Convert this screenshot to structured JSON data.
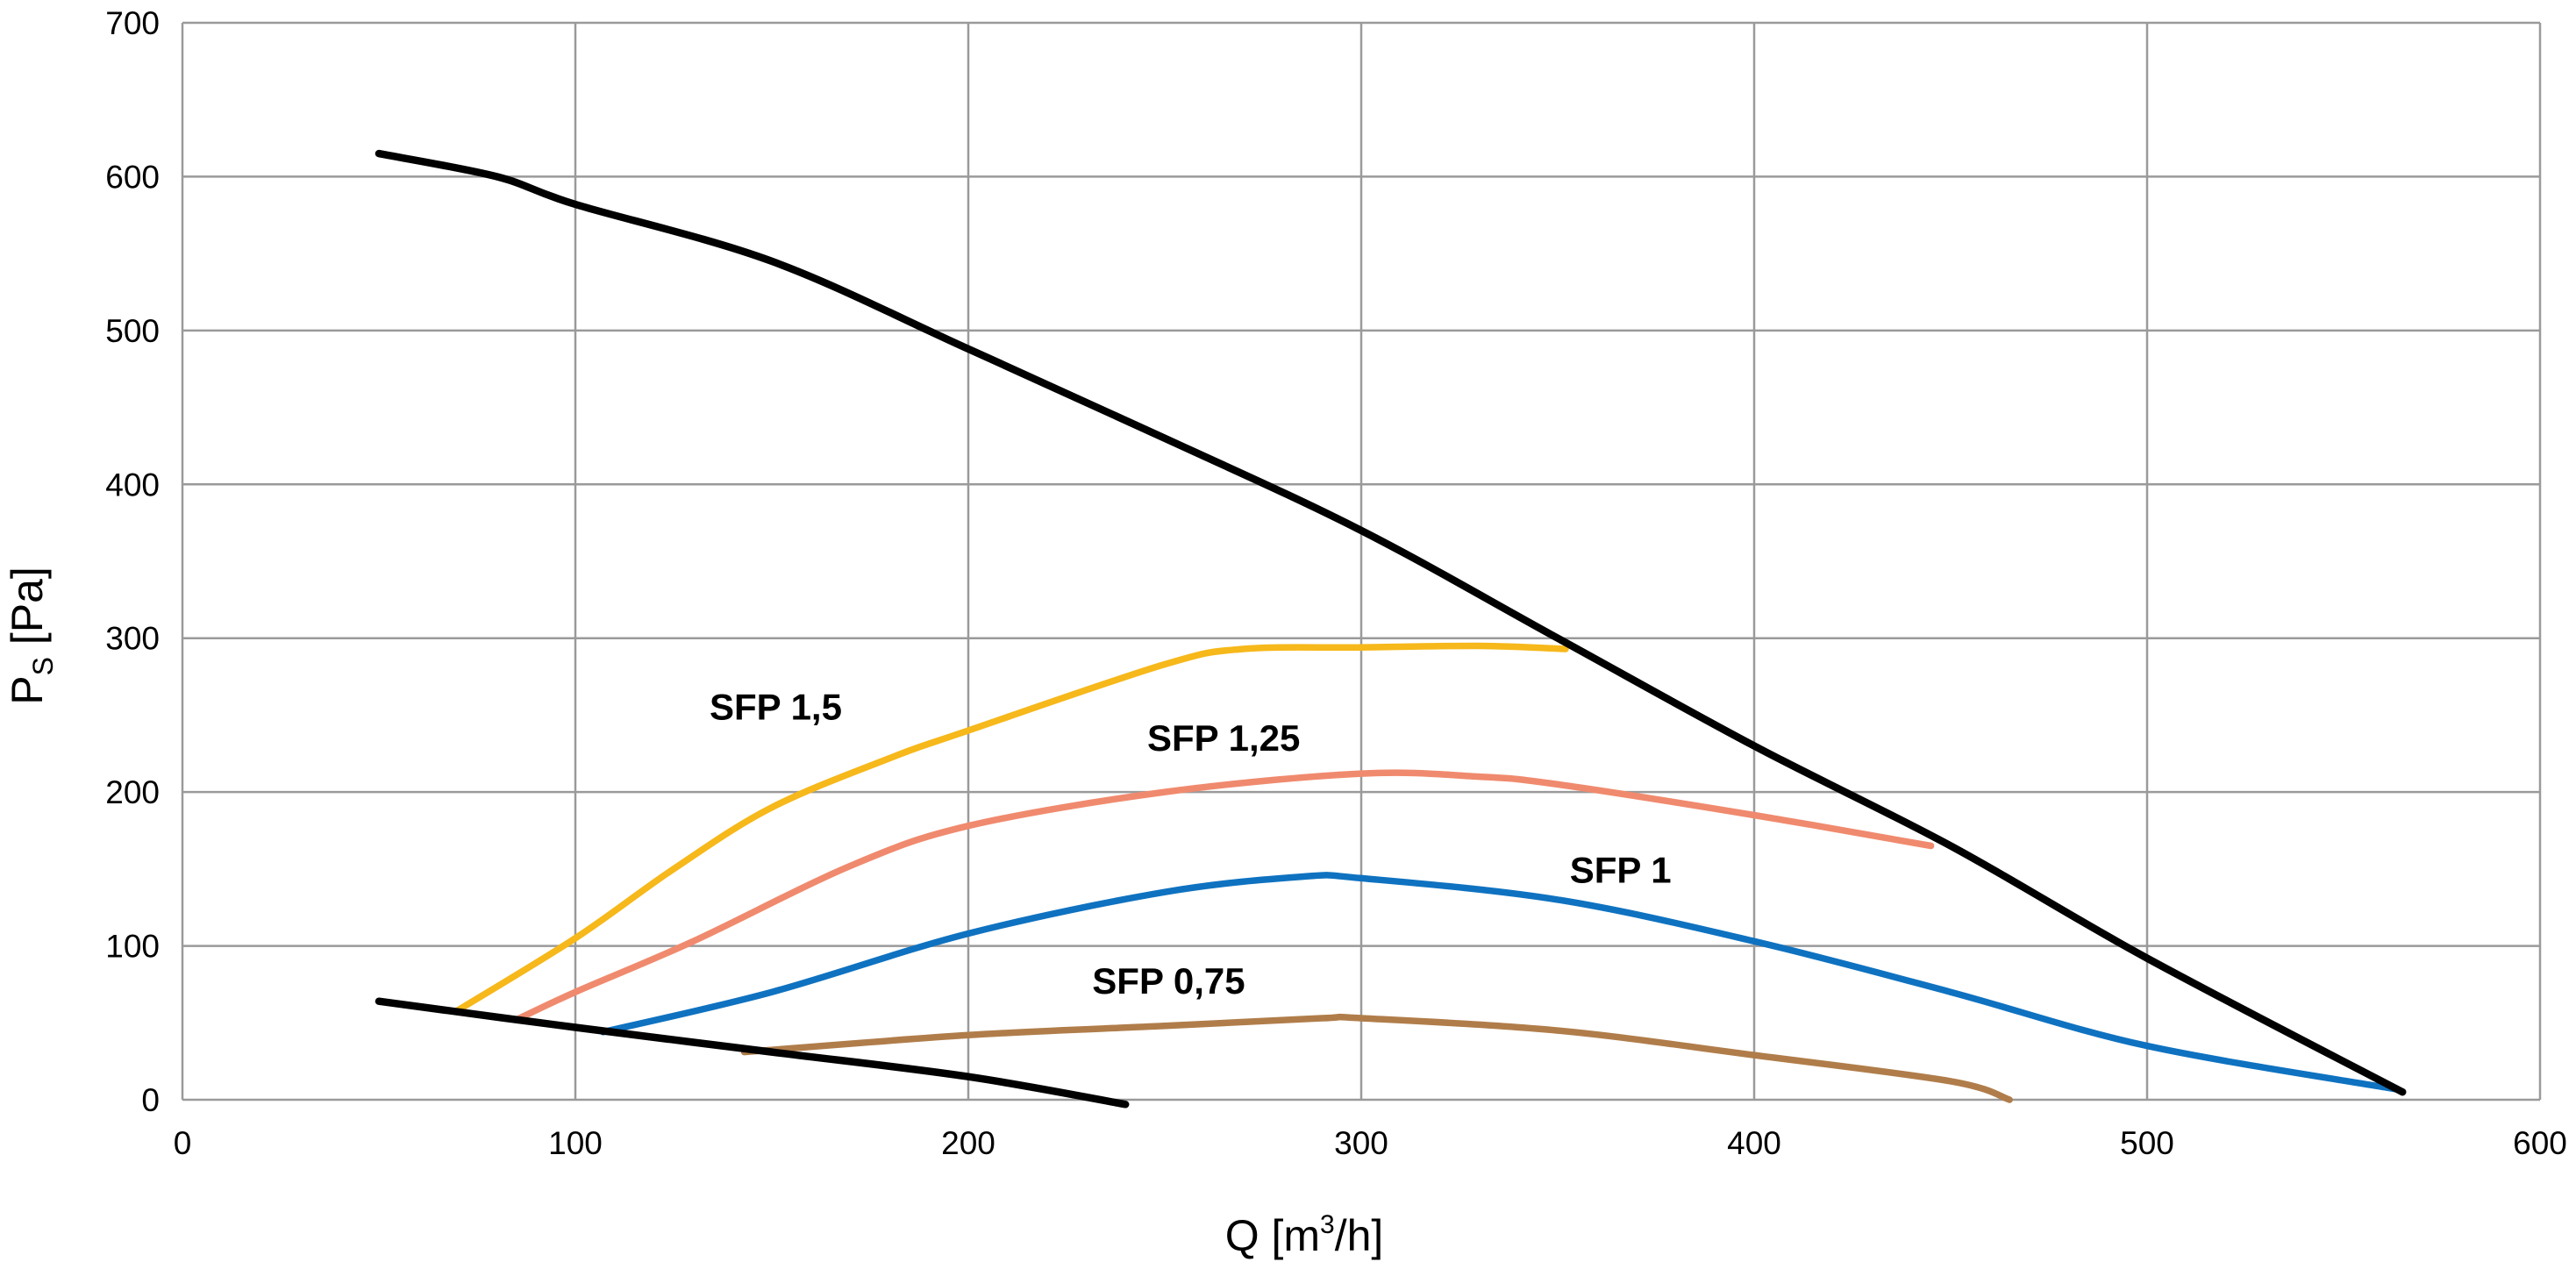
{
  "chart_data": {
    "type": "line",
    "xlabel": {
      "prefix": "Q [m",
      "sup": "3",
      "suffix": "/h]"
    },
    "ylabel": {
      "prefix": "P",
      "sub": "S",
      "suffix": " [Pa]"
    },
    "xlim": [
      0,
      600
    ],
    "ylim": [
      0,
      700
    ],
    "xticks": [
      0,
      100,
      200,
      300,
      400,
      500,
      600
    ],
    "yticks": [
      0,
      100,
      200,
      300,
      400,
      500,
      600,
      700
    ],
    "grid": true,
    "legend": "none",
    "series": [
      {
        "name": "",
        "color": "#000000",
        "points": [
          [
            50,
            615
          ],
          [
            80,
            600
          ],
          [
            100,
            582
          ],
          [
            150,
            545
          ],
          [
            200,
            488
          ],
          [
            250,
            430
          ],
          [
            300,
            370
          ],
          [
            350,
            300
          ],
          [
            400,
            230
          ],
          [
            450,
            165
          ],
          [
            500,
            92
          ],
          [
            565,
            5
          ]
        ]
      },
      {
        "name": "",
        "color": "#000000",
        "points": [
          [
            50,
            64
          ],
          [
            100,
            47
          ],
          [
            150,
            31
          ],
          [
            200,
            15
          ],
          [
            240,
            -3
          ]
        ]
      },
      {
        "name": "SFP 1,5",
        "color": "#F6B81A",
        "points": [
          [
            70,
            58
          ],
          [
            100,
            105
          ],
          [
            125,
            150
          ],
          [
            150,
            190
          ],
          [
            180,
            222
          ],
          [
            200,
            240
          ],
          [
            250,
            283
          ],
          [
            270,
            293
          ],
          [
            300,
            294
          ],
          [
            330,
            295
          ],
          [
            352,
            293
          ]
        ]
      },
      {
        "name": "SFP 1,25",
        "color": "#F08A6E",
        "points": [
          [
            85,
            52
          ],
          [
            100,
            70
          ],
          [
            130,
            103
          ],
          [
            170,
            152
          ],
          [
            200,
            178
          ],
          [
            250,
            200
          ],
          [
            300,
            212
          ],
          [
            330,
            210
          ],
          [
            350,
            205
          ],
          [
            400,
            185
          ],
          [
            445,
            165
          ]
        ]
      },
      {
        "name": "SFP 1",
        "color": "#0F72C0",
        "points": [
          [
            107,
            44
          ],
          [
            150,
            70
          ],
          [
            200,
            108
          ],
          [
            250,
            135
          ],
          [
            285,
            145
          ],
          [
            300,
            144
          ],
          [
            350,
            130
          ],
          [
            400,
            103
          ],
          [
            450,
            70
          ],
          [
            500,
            35
          ],
          [
            563,
            7
          ]
        ]
      },
      {
        "name": "SFP 0,75",
        "color": "#B07D4A",
        "points": [
          [
            143,
            31
          ],
          [
            200,
            42
          ],
          [
            250,
            48
          ],
          [
            290,
            53
          ],
          [
            300,
            53
          ],
          [
            350,
            45
          ],
          [
            400,
            29
          ],
          [
            450,
            12
          ],
          [
            465,
            0
          ]
        ]
      }
    ],
    "annotations": [
      {
        "text": "SFP 1,5",
        "x": 151,
        "y": 247
      },
      {
        "text": "SFP 1,25",
        "x": 265,
        "y": 227
      },
      {
        "text": "SFP 1",
        "x": 366,
        "y": 141
      },
      {
        "text": "SFP 0,75",
        "x": 251,
        "y": 69
      }
    ]
  }
}
